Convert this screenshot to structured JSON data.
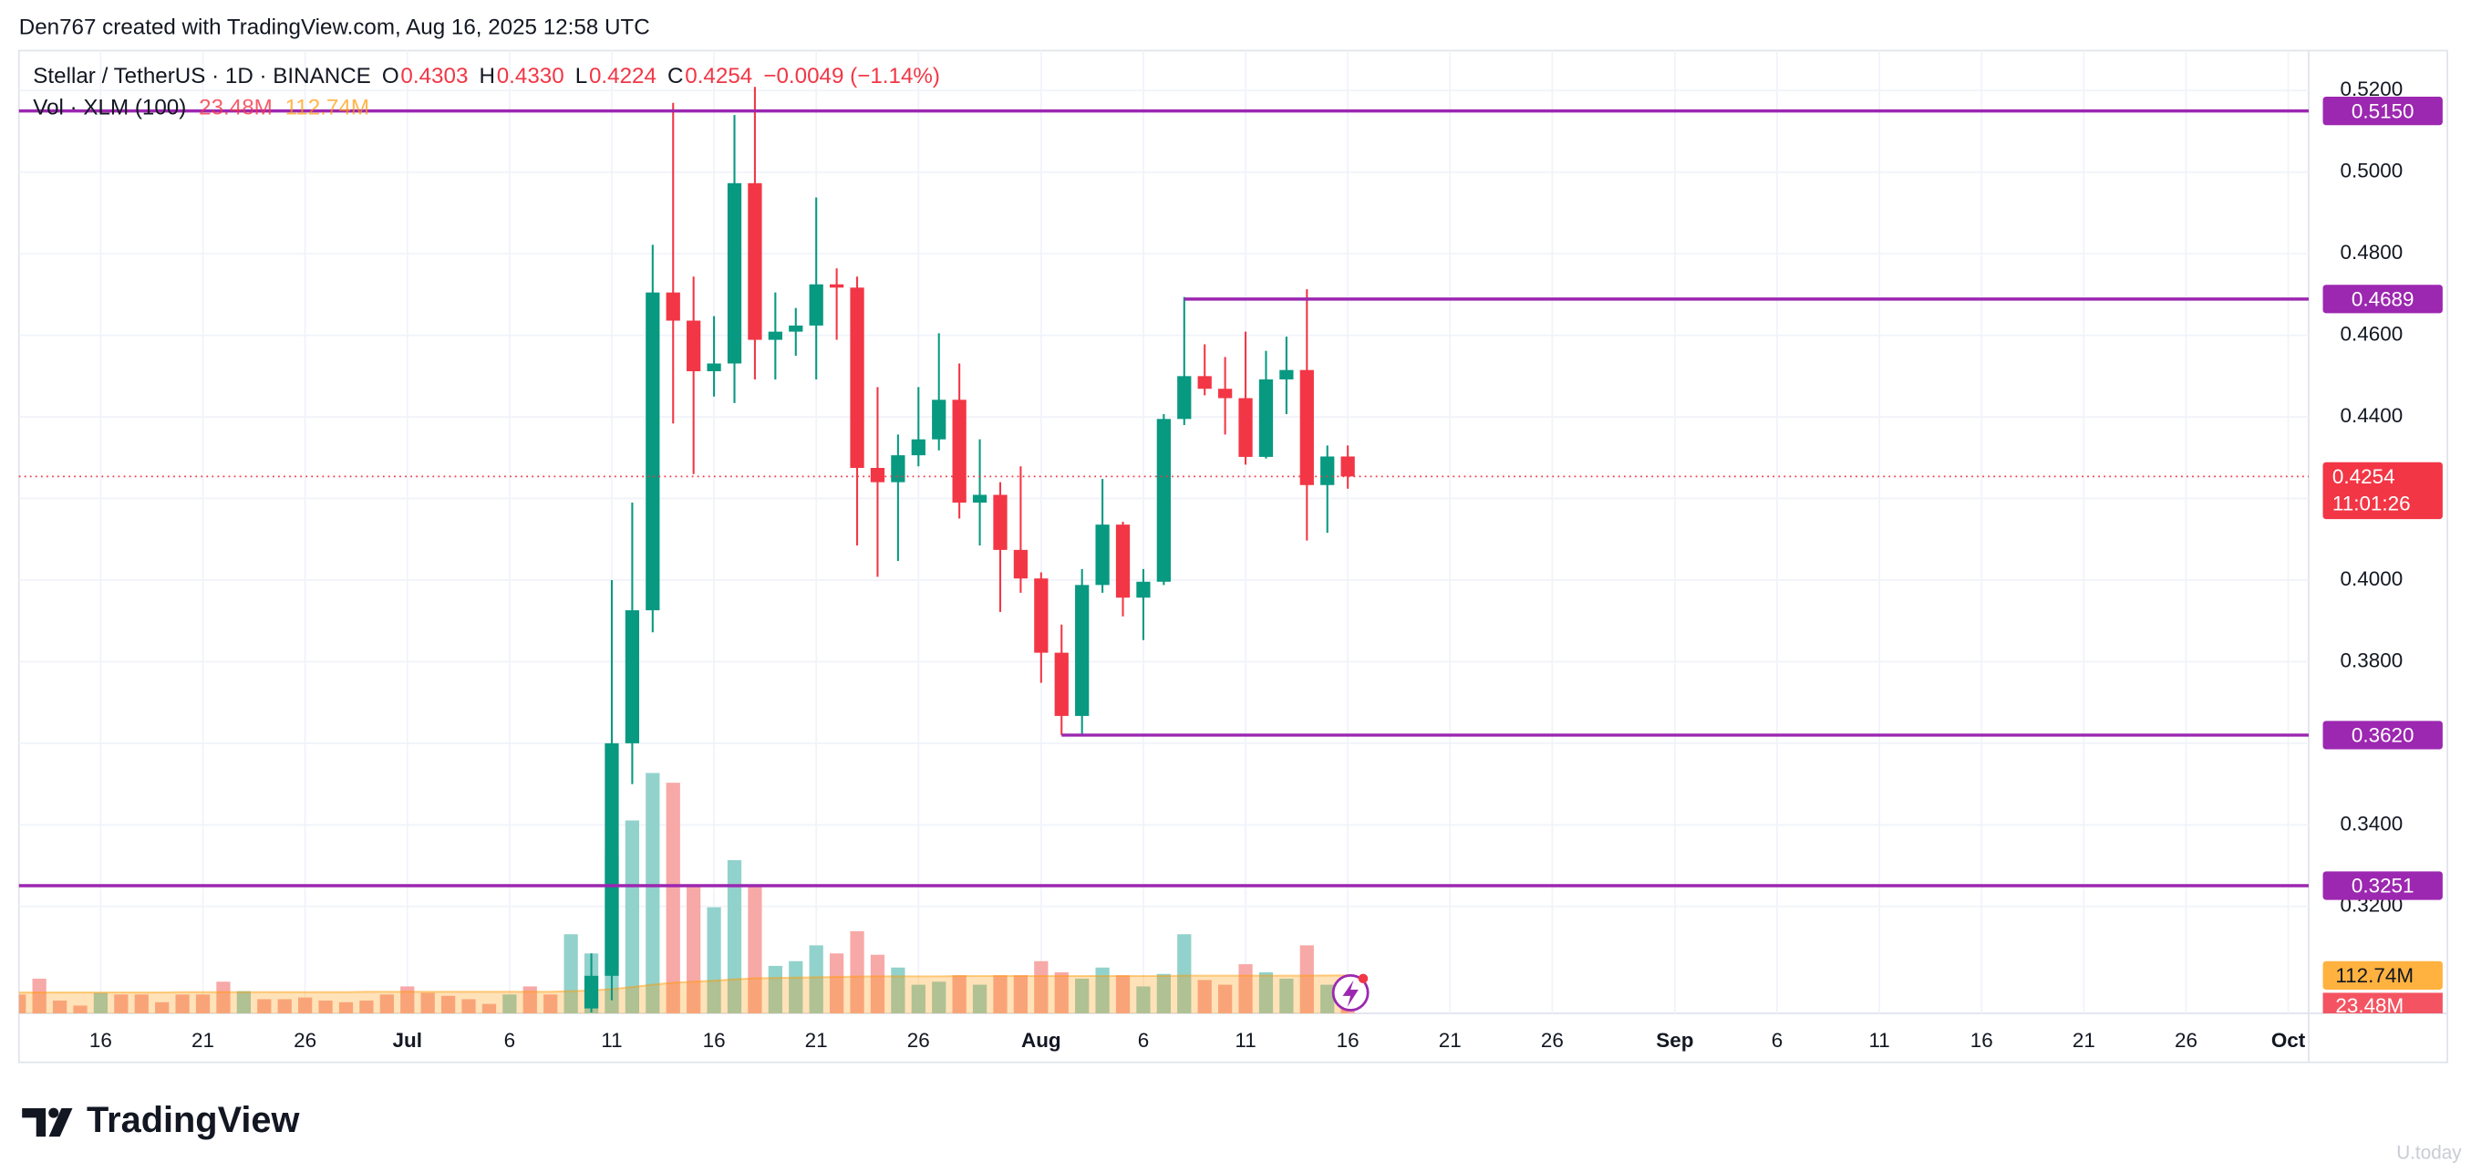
{
  "header": "Den767 created with TradingView.com, Aug 16, 2025 12:58 UTC",
  "brand": "TradingView",
  "watermark": "U.today",
  "chart_data": {
    "type": "candlestick",
    "legend": {
      "symbol": "Stellar / TetherUS · 1D · BINANCE",
      "ohlc": [
        {
          "key": "O",
          "label": "0.4303"
        },
        {
          "key": "H",
          "label": "0.4330"
        },
        {
          "key": "L",
          "label": "0.4224"
        },
        {
          "key": "C",
          "label": "0.4254"
        }
      ],
      "change": "−0.0049 (−1.14%)",
      "color": "#f23645"
    },
    "up_color": "#089981",
    "down_color": "#f23645",
    "x": [
      "07-10",
      "07-11",
      "07-12",
      "07-13",
      "07-14",
      "07-15",
      "07-16",
      "07-17",
      "07-18",
      "07-19",
      "07-20",
      "07-21",
      "07-22",
      "07-23",
      "07-24",
      "07-25",
      "07-26",
      "07-27",
      "07-28",
      "07-29",
      "07-30",
      "07-31",
      "08-01",
      "08-02",
      "08-03",
      "08-04",
      "08-05",
      "08-06",
      "08-07",
      "08-08",
      "08-09",
      "08-10",
      "08-11",
      "08-12",
      "08-13",
      "08-14",
      "08-15",
      "08-16"
    ],
    "open": [
      0.295,
      0.303,
      0.36,
      0.3926,
      0.4705,
      0.4636,
      0.4512,
      0.4531,
      0.4973,
      0.4589,
      0.4609,
      0.4624,
      0.4725,
      0.4717,
      0.4275,
      0.424,
      0.4306,
      0.4345,
      0.4442,
      0.419,
      0.4209,
      0.4074,
      0.4004,
      0.3822,
      0.3667,
      0.3988,
      0.4136,
      0.3957,
      0.3996,
      0.4395,
      0.45,
      0.4469,
      0.4446,
      0.4302,
      0.4492,
      0.4515,
      0.4233,
      0.4303
    ],
    "high": [
      0.3085,
      0.4,
      0.419,
      0.4822,
      0.517,
      0.4744,
      0.4647,
      0.514,
      0.5209,
      0.4705,
      0.4667,
      0.4938,
      0.4764,
      0.4744,
      0.4473,
      0.4357,
      0.4473,
      0.4605,
      0.4531,
      0.4345,
      0.424,
      0.4279,
      0.4019,
      0.3891,
      0.4027,
      0.4248,
      0.4143,
      0.4027,
      0.4407,
      0.4694,
      0.4578,
      0.4547,
      0.4609,
      0.4562,
      0.4597,
      0.4713,
      0.433,
      0.433
    ],
    "low": [
      0.294,
      0.297,
      0.35,
      0.3872,
      0.4384,
      0.426,
      0.445,
      0.4434,
      0.4492,
      0.4492,
      0.455,
      0.4492,
      0.4589,
      0.4085,
      0.4008,
      0.4047,
      0.4279,
      0.4318,
      0.4151,
      0.4085,
      0.3922,
      0.3969,
      0.3748,
      0.362,
      0.362,
      0.3969,
      0.3911,
      0.3853,
      0.3988,
      0.438,
      0.4453,
      0.4357,
      0.4283,
      0.4298,
      0.4407,
      0.4097,
      0.4116,
      0.4224
    ],
    "close": [
      0.303,
      0.36,
      0.3926,
      0.4705,
      0.4636,
      0.4512,
      0.4531,
      0.4973,
      0.4589,
      0.4609,
      0.4624,
      0.4725,
      0.4717,
      0.4275,
      0.424,
      0.4306,
      0.4345,
      0.4442,
      0.419,
      0.4209,
      0.4074,
      0.4004,
      0.3822,
      0.3667,
      0.3988,
      0.4136,
      0.3957,
      0.3996,
      0.4395,
      0.45,
      0.4469,
      0.4446,
      0.4302,
      0.4492,
      0.4515,
      0.4233,
      0.4303,
      0.4254
    ],
    "xlim": [
      "06-12",
      "10-02"
    ],
    "xticks": [
      {
        "value": "06-16",
        "label": "16"
      },
      {
        "value": "06-21",
        "label": "21"
      },
      {
        "value": "06-26",
        "label": "26"
      },
      {
        "value": "07-01",
        "label": "Jul"
      },
      {
        "value": "07-06",
        "label": "6"
      },
      {
        "value": "07-11",
        "label": "11"
      },
      {
        "value": "07-16",
        "label": "16"
      },
      {
        "value": "07-21",
        "label": "21"
      },
      {
        "value": "07-26",
        "label": "26"
      },
      {
        "value": "08-01",
        "label": "Aug"
      },
      {
        "value": "08-06",
        "label": "6"
      },
      {
        "value": "08-11",
        "label": "11"
      },
      {
        "value": "08-16",
        "label": "16"
      },
      {
        "value": "08-21",
        "label": "21"
      },
      {
        "value": "08-26",
        "label": "26"
      },
      {
        "value": "09-01",
        "label": "Sep"
      },
      {
        "value": "09-06",
        "label": "6"
      },
      {
        "value": "09-11",
        "label": "11"
      },
      {
        "value": "09-16",
        "label": "16"
      },
      {
        "value": "09-21",
        "label": "21"
      },
      {
        "value": "09-26",
        "label": "26"
      },
      {
        "value": "10-01",
        "label": "Oct"
      }
    ],
    "ylim": [
      0.2938,
      0.5298
    ],
    "yticks": [
      {
        "value": 0.32,
        "label": "0.3200"
      },
      {
        "value": 0.34,
        "label": "0.3400"
      },
      {
        "value": 0.36,
        "label": "0.3600"
      },
      {
        "value": 0.38,
        "label": "0.3800"
      },
      {
        "value": 0.4,
        "label": "0.4000"
      },
      {
        "value": 0.42,
        "label": "0.4200"
      },
      {
        "value": 0.44,
        "label": "0.4400"
      },
      {
        "value": 0.46,
        "label": "0.4600"
      },
      {
        "value": 0.48,
        "label": "0.4800"
      },
      {
        "value": 0.5,
        "label": "0.5000"
      },
      {
        "value": 0.52,
        "label": "0.5200"
      }
    ],
    "grid": true,
    "levels": [
      {
        "value": 0.515,
        "label": "0.5150",
        "color": "#9c27b0"
      },
      {
        "value": 0.4689,
        "label": "0.4689",
        "start": "08-08",
        "color": "#9c27b0"
      },
      {
        "value": 0.362,
        "label": "0.3620",
        "start": "08-02",
        "color": "#9c27b0"
      },
      {
        "value": 0.3251,
        "label": "0.3251",
        "color": "#9c27b0"
      }
    ],
    "last_price": {
      "value": 0.4254,
      "label": "0.4254",
      "countdown": "11:01:26",
      "color": "#f23645"
    },
    "volume": {
      "name": "Vol · XLM (100)",
      "ylim": [
        0,
        2860
      ],
      "x": [
        "06-12",
        "06-13",
        "06-14",
        "06-15",
        "06-16",
        "06-17",
        "06-18",
        "06-19",
        "06-20",
        "06-21",
        "06-22",
        "06-23",
        "06-24",
        "06-25",
        "06-26",
        "06-27",
        "06-28",
        "06-29",
        "06-30",
        "07-01",
        "07-02",
        "07-03",
        "07-04",
        "07-05",
        "07-06",
        "07-07",
        "07-08",
        "07-09",
        "07-10",
        "07-11",
        "07-12",
        "07-13",
        "07-14",
        "07-15",
        "07-16",
        "07-17",
        "07-18",
        "07-19",
        "07-20",
        "07-21",
        "07-22",
        "07-23",
        "07-24",
        "07-25",
        "07-26",
        "07-27",
        "07-28",
        "07-29",
        "07-30",
        "07-31",
        "08-01",
        "08-02",
        "08-03",
        "08-04",
        "08-05",
        "08-06",
        "08-07",
        "08-08",
        "08-09",
        "08-10",
        "08-11",
        "08-12",
        "08-13",
        "08-14",
        "08-15",
        "08-16"
      ],
      "values": [
        56,
        103,
        38,
        23,
        61,
        56,
        56,
        33,
        56,
        56,
        94,
        66,
        42,
        42,
        47,
        38,
        33,
        38,
        56,
        80,
        61,
        52,
        42,
        28,
        56,
        80,
        56,
        235,
        178,
        470,
        573,
        714,
        685,
        376,
        315,
        455,
        376,
        141,
        155,
        202,
        178,
        244,
        174,
        136,
        85,
        94,
        113,
        85,
        113,
        113,
        155,
        122,
        103,
        136,
        113,
        80,
        117,
        235,
        99,
        85,
        146,
        122,
        103,
        202,
        85,
        23.48
      ],
      "colors": [
        "#f7a9a7",
        "#f7a9a7",
        "#f7a9a7",
        "#f7a9a7",
        "#92d2cc",
        "#f7a9a7",
        "#f7a9a7",
        "#f7a9a7",
        "#f7a9a7",
        "#f7a9a7",
        "#f7a9a7",
        "#92d2cc",
        "#f7a9a7",
        "#f7a9a7",
        "#f7a9a7",
        "#f7a9a7",
        "#f7a9a7",
        "#f7a9a7",
        "#f7a9a7",
        "#f7a9a7",
        "#f7a9a7",
        "#f7a9a7",
        "#f7a9a7",
        "#f7a9a7",
        "#92d2cc",
        "#f7a9a7",
        "#f7a9a7",
        "#92d2cc",
        "#92d2cc",
        "#92d2cc",
        "#92d2cc",
        "#92d2cc",
        "#f7a9a7",
        "#f7a9a7",
        "#92d2cc",
        "#92d2cc",
        "#f7a9a7",
        "#92d2cc",
        "#92d2cc",
        "#92d2cc",
        "#f7a9a7",
        "#f7a9a7",
        "#f7a9a7",
        "#92d2cc",
        "#92d2cc",
        "#92d2cc",
        "#f7a9a7",
        "#92d2cc",
        "#f7a9a7",
        "#f7a9a7",
        "#f7a9a7",
        "#f7a9a7",
        "#92d2cc",
        "#92d2cc",
        "#f7a9a7",
        "#92d2cc",
        "#92d2cc",
        "#92d2cc",
        "#f7a9a7",
        "#f7a9a7",
        "#f7a9a7",
        "#92d2cc",
        "#92d2cc",
        "#f7a9a7",
        "#92d2cc",
        "#f7a9a7"
      ],
      "last_value_label": "23.48M",
      "ma": [
        62,
        62,
        62,
        62,
        62,
        62,
        62,
        62,
        63,
        63,
        63,
        63,
        63,
        63,
        63,
        63,
        63,
        64,
        64,
        64,
        64,
        64,
        64,
        64,
        64,
        64,
        64,
        66,
        68,
        72,
        78,
        85,
        91,
        94,
        97,
        101,
        104,
        105,
        106,
        107,
        108,
        109,
        110,
        110,
        110,
        110,
        111,
        111,
        111,
        111,
        111,
        111,
        111,
        111,
        111,
        111,
        111,
        112,
        112,
        112,
        112,
        112,
        112,
        112,
        112.5,
        112.74
      ],
      "ma_color": "#ff9800",
      "ma_last_label": "112.74M"
    }
  }
}
